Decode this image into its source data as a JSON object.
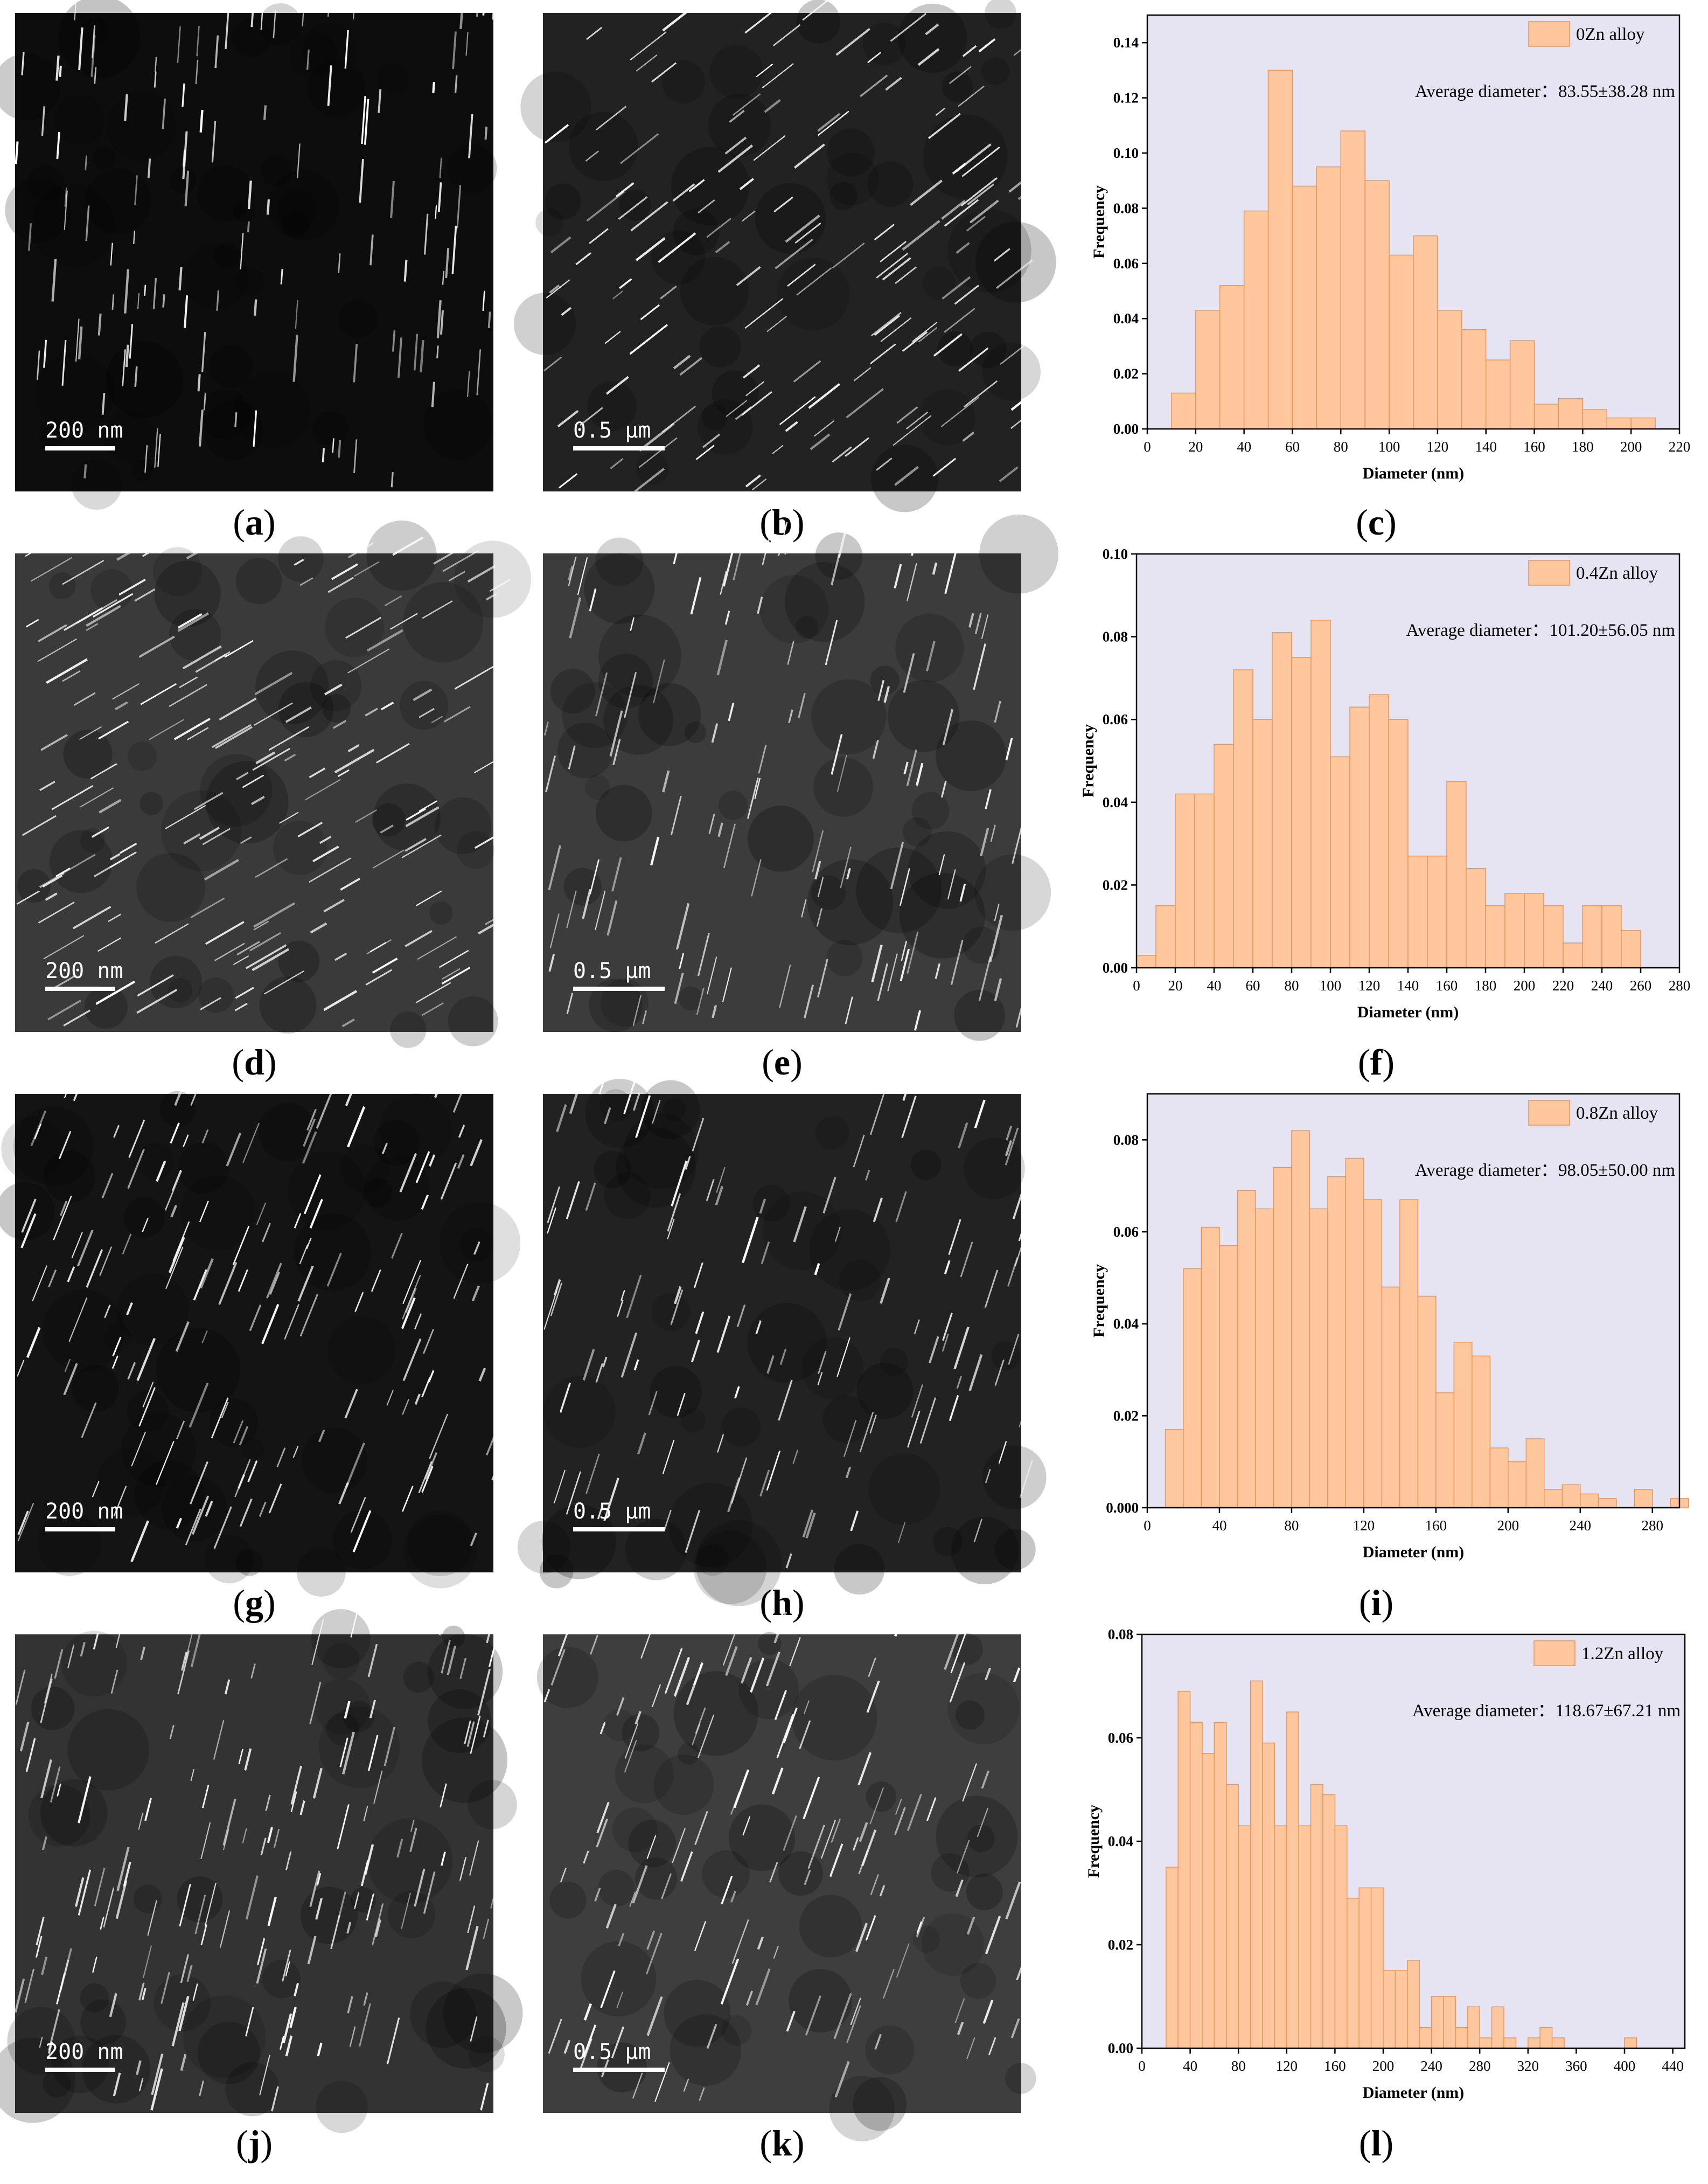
{
  "micrographs": [
    {
      "id": "a",
      "scale_label": "200 nm",
      "tone": "#0d0d0d",
      "streak_angle": 4,
      "density": 130
    },
    {
      "id": "b",
      "scale_label": "0.5 μm",
      "tone": "#222222",
      "streak_angle": 52,
      "density": 150
    },
    {
      "id": "d",
      "scale_label": "200 nm",
      "tone": "#3a3a3a",
      "streak_angle": 60,
      "density": 170
    },
    {
      "id": "e",
      "scale_label": "0.5 μm",
      "tone": "#3c3c3c",
      "streak_angle": 14,
      "density": 120
    },
    {
      "id": "g",
      "scale_label": "200 nm",
      "tone": "#141414",
      "streak_angle": 22,
      "density": 150
    },
    {
      "id": "h",
      "scale_label": "0.5 μm",
      "tone": "#222222",
      "streak_angle": 18,
      "density": 120
    },
    {
      "id": "j",
      "scale_label": "200 nm",
      "tone": "#333333",
      "streak_angle": 14,
      "density": 160
    },
    {
      "id": "k",
      "scale_label": "0.5 μm",
      "tone": "#3e3e3e",
      "streak_angle": 20,
      "density": 130
    }
  ],
  "panel_labels": [
    "a",
    "b",
    "c",
    "d",
    "e",
    "f",
    "g",
    "h",
    "i",
    "j",
    "k",
    "l"
  ],
  "colors": {
    "bar_fill": "#ffc79e",
    "bar_stroke": "#e8955c",
    "plot_bg": "#e6e4f2"
  },
  "chart_data": [
    {
      "id": "c",
      "type": "bar",
      "legend": "0Zn alloy",
      "annotation": "Average diameter：83.55±38.28 nm",
      "xlabel": "Diameter (nm)",
      "ylabel": "Frequency",
      "xlim": [
        0,
        220
      ],
      "ylim": [
        0,
        0.15
      ],
      "xticks": [
        0,
        20,
        40,
        60,
        80,
        100,
        120,
        140,
        160,
        180,
        200,
        220
      ],
      "xtick_labels": [
        "0",
        "20",
        "40",
        "60",
        "80",
        "100",
        "120",
        "140",
        "160",
        "180",
        "200",
        "220"
      ],
      "yticks": [
        0,
        0.02,
        0.04,
        0.06,
        0.08,
        0.1,
        0.12,
        0.14
      ],
      "ytick_labels": [
        "0.00",
        "0.02",
        "0.04",
        "0.06",
        "0.08",
        "0.10",
        "0.12",
        "0.14"
      ],
      "bin_start": 10,
      "bin_width": 10,
      "values": [
        0.013,
        0.043,
        0.052,
        0.079,
        0.13,
        0.088,
        0.095,
        0.108,
        0.09,
        0.063,
        0.07,
        0.043,
        0.036,
        0.025,
        0.032,
        0.009,
        0.011,
        0.007,
        0.004,
        0.004
      ]
    },
    {
      "id": "f",
      "type": "bar",
      "legend": "0.4Zn alloy",
      "annotation": "Average diameter：101.20±56.05 nm",
      "xlabel": "Diameter (nm)",
      "ylabel": "Frequency",
      "xlim": [
        0,
        280
      ],
      "ylim": [
        0,
        0.1
      ],
      "xticks": [
        0,
        20,
        40,
        60,
        80,
        100,
        120,
        140,
        160,
        180,
        200,
        220,
        240,
        260,
        280
      ],
      "xtick_labels": [
        "0",
        "20",
        "40",
        "60",
        "80",
        "100",
        "120",
        "140",
        "160",
        "180",
        "200",
        "220",
        "240",
        "260",
        "280"
      ],
      "yticks": [
        0,
        0.02,
        0.04,
        0.06,
        0.08,
        0.1
      ],
      "ytick_labels": [
        "0.00",
        "0.02",
        "0.04",
        "0.06",
        "0.08",
        "0.10"
      ],
      "bin_start": 0,
      "bin_width": 10,
      "values": [
        0.003,
        0.015,
        0.042,
        0.042,
        0.054,
        0.072,
        0.06,
        0.081,
        0.075,
        0.084,
        0.051,
        0.063,
        0.066,
        0.06,
        0.027,
        0.027,
        0.045,
        0.024,
        0.015,
        0.018,
        0.018,
        0.015,
        0.006,
        0.015,
        0.015,
        0.009
      ]
    },
    {
      "id": "i",
      "type": "bar",
      "legend": "0.8Zn alloy",
      "annotation": "Average diameter：98.05±50.00 nm",
      "xlabel": "Diameter (nm)",
      "ylabel": "Frequency",
      "xlim": [
        0,
        295
      ],
      "ylim": [
        0,
        0.09
      ],
      "xticks": [
        0,
        40,
        80,
        120,
        160,
        200,
        240,
        280
      ],
      "xtick_labels": [
        "0",
        "40",
        "80",
        "120",
        "160",
        "200",
        "240",
        "280"
      ],
      "yticks": [
        0,
        0.02,
        0.04,
        0.06,
        0.08
      ],
      "ytick_labels": [
        "0.000",
        "0.02",
        "0.04",
        "0.06",
        "0.08"
      ],
      "bin_start": 10,
      "bin_width": 10,
      "values": [
        0.017,
        0.052,
        0.061,
        0.057,
        0.069,
        0.065,
        0.074,
        0.082,
        0.065,
        0.072,
        0.076,
        0.067,
        0.048,
        0.067,
        0.046,
        0.025,
        0.036,
        0.033,
        0.013,
        0.01,
        0.015,
        0.004,
        0.005,
        0.003,
        0.002,
        0.0,
        0.004,
        0.0,
        0.002
      ]
    },
    {
      "id": "l",
      "type": "bar",
      "legend": "1.2Zn alloy",
      "annotation": "Average diameter：118.67±67.21 nm",
      "xlabel": "Diameter (nm)",
      "ylabel": "Frequency",
      "xlim": [
        0,
        450
      ],
      "ylim": [
        0,
        0.08
      ],
      "xticks": [
        0,
        40,
        80,
        120,
        160,
        200,
        240,
        280,
        320,
        360,
        400,
        440
      ],
      "xtick_labels": [
        "0",
        "40",
        "80",
        "120",
        "160",
        "200",
        "240",
        "280",
        "320",
        "360",
        "400",
        "440"
      ],
      "yticks": [
        0,
        0.02,
        0.04,
        0.06,
        0.08
      ],
      "ytick_labels": [
        "0.00",
        "0.02",
        "0.04",
        "0.06",
        "0.08"
      ],
      "bin_start": 20,
      "bin_width": 10,
      "values": [
        0.035,
        0.069,
        0.063,
        0.057,
        0.063,
        0.051,
        0.043,
        0.071,
        0.059,
        0.043,
        0.065,
        0.043,
        0.051,
        0.049,
        0.043,
        0.029,
        0.031,
        0.031,
        0.015,
        0.015,
        0.017,
        0.004,
        0.01,
        0.01,
        0.004,
        0.008,
        0.002,
        0.008,
        0.002,
        0.0,
        0.002,
        0.004,
        0.002,
        0.0,
        0.0,
        0.0,
        0.0,
        0.0,
        0.002
      ]
    }
  ]
}
